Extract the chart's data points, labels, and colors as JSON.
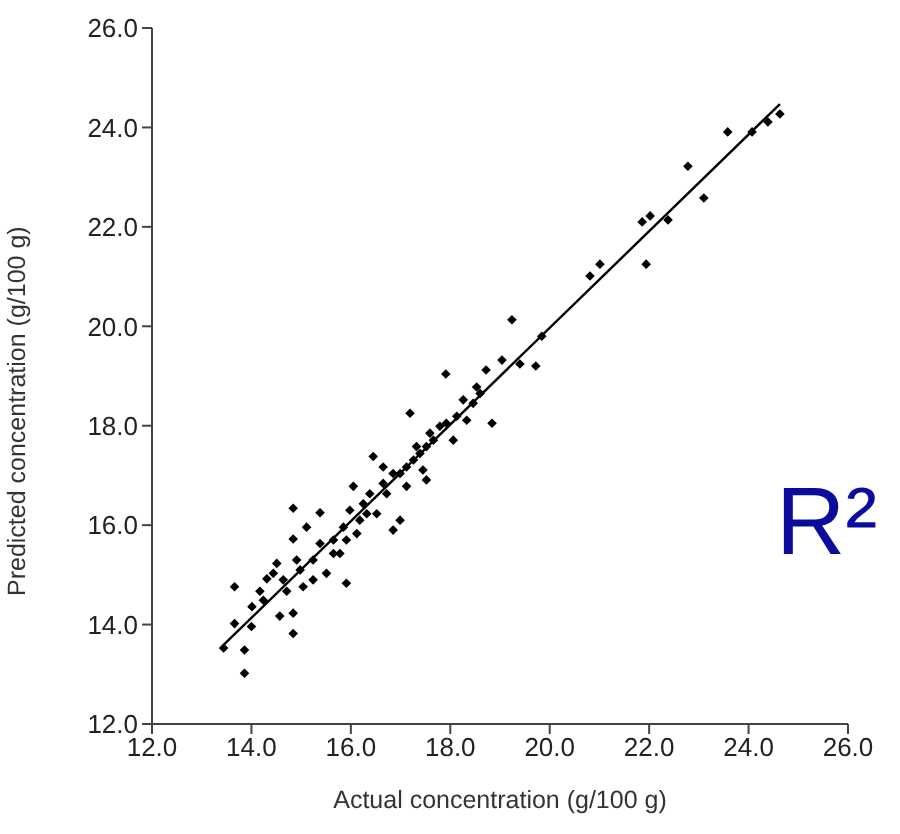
{
  "chart_data": {
    "type": "scatter",
    "xlabel": "Actual concentration (g/100 g)",
    "ylabel": "Predicted concentration (g/100 g)",
    "annotations": [
      "R²"
    ],
    "xlim": [
      12,
      26
    ],
    "ylim": [
      12,
      26
    ],
    "xticks": [
      {
        "value": 12,
        "label": "12.0"
      },
      {
        "value": 14,
        "label": "14.0"
      },
      {
        "value": 16,
        "label": "16.0"
      },
      {
        "value": 18,
        "label": "18.0"
      },
      {
        "value": 20,
        "label": "20.0"
      },
      {
        "value": 22,
        "label": "22.0"
      },
      {
        "value": 24,
        "label": "24.0"
      },
      {
        "value": 26,
        "label": "26.0"
      }
    ],
    "yticks": [
      {
        "value": 12,
        "label": "12.0"
      },
      {
        "value": 14,
        "label": "14.0"
      },
      {
        "value": 16,
        "label": "16.0"
      },
      {
        "value": 18,
        "label": "18.0"
      },
      {
        "value": 20,
        "label": "20.0"
      },
      {
        "value": 22,
        "label": "22.0"
      },
      {
        "value": 24,
        "label": "24.0"
      },
      {
        "value": 26,
        "label": "26.0"
      }
    ],
    "grid": false,
    "series": [
      {
        "marker": "diamond",
        "color": "#000000",
        "x": [
          13.44,
          13.86,
          13.66,
          13.66,
          13.86,
          14.0,
          14.01,
          14.24,
          14.31,
          14.51,
          14.57,
          14.84,
          14.84,
          14.84,
          14.84,
          14.71,
          15.04,
          15.24,
          15.38,
          15.51,
          15.65,
          15.91,
          15.85,
          15.98,
          16.12,
          16.25,
          16.38,
          16.52,
          16.65,
          16.85,
          16.99,
          16.85,
          17.12,
          17.19,
          17.32,
          17.52,
          17.59,
          17.79,
          18.06,
          18.26,
          18.46,
          18.6,
          18.84,
          18.33,
          16.45,
          16.65,
          16.05,
          15.38,
          15.11,
          14.44,
          14.17,
          14.64,
          14.98,
          15.24,
          15.65,
          15.78,
          16.18,
          16.32,
          16.72,
          16.99,
          17.26,
          17.39,
          17.66,
          17.92,
          18.13,
          18.53,
          17.45,
          17.12,
          17.52,
          15.91,
          14.91,
          17.91,
          18.72,
          19.04,
          19.24,
          19.4,
          19.72,
          19.84,
          20.81,
          21.01,
          21.86,
          22.02,
          21.94,
          22.38,
          22.78,
          23.1,
          23.58,
          24.07,
          24.39,
          24.63
        ],
        "values": [
          13.53,
          13.02,
          14.02,
          14.76,
          13.49,
          13.96,
          14.36,
          14.49,
          14.92,
          15.23,
          14.17,
          13.82,
          15.72,
          16.34,
          14.23,
          14.67,
          14.76,
          15.3,
          15.63,
          15.03,
          15.43,
          14.83,
          15.96,
          16.3,
          15.83,
          16.43,
          16.63,
          16.23,
          16.84,
          15.9,
          16.1,
          17.04,
          17.17,
          18.25,
          17.58,
          16.91,
          17.85,
          17.99,
          17.71,
          18.52,
          18.45,
          18.65,
          18.05,
          18.11,
          17.38,
          17.17,
          16.78,
          16.25,
          15.96,
          15.03,
          14.67,
          14.9,
          15.1,
          14.9,
          15.7,
          15.43,
          16.1,
          16.23,
          16.63,
          17.04,
          17.31,
          17.44,
          17.71,
          18.05,
          18.19,
          18.78,
          17.11,
          16.78,
          17.58,
          15.7,
          15.3,
          19.04,
          19.12,
          19.32,
          20.13,
          19.24,
          19.2,
          19.8,
          21.01,
          21.25,
          22.1,
          22.22,
          21.25,
          22.14,
          23.22,
          22.58,
          23.91,
          23.91,
          24.11,
          24.27
        ]
      },
      {
        "type": "line",
        "color": "#000000",
        "x": [
          13.45,
          24.63
        ],
        "values": [
          13.6,
          24.47
        ]
      }
    ]
  }
}
